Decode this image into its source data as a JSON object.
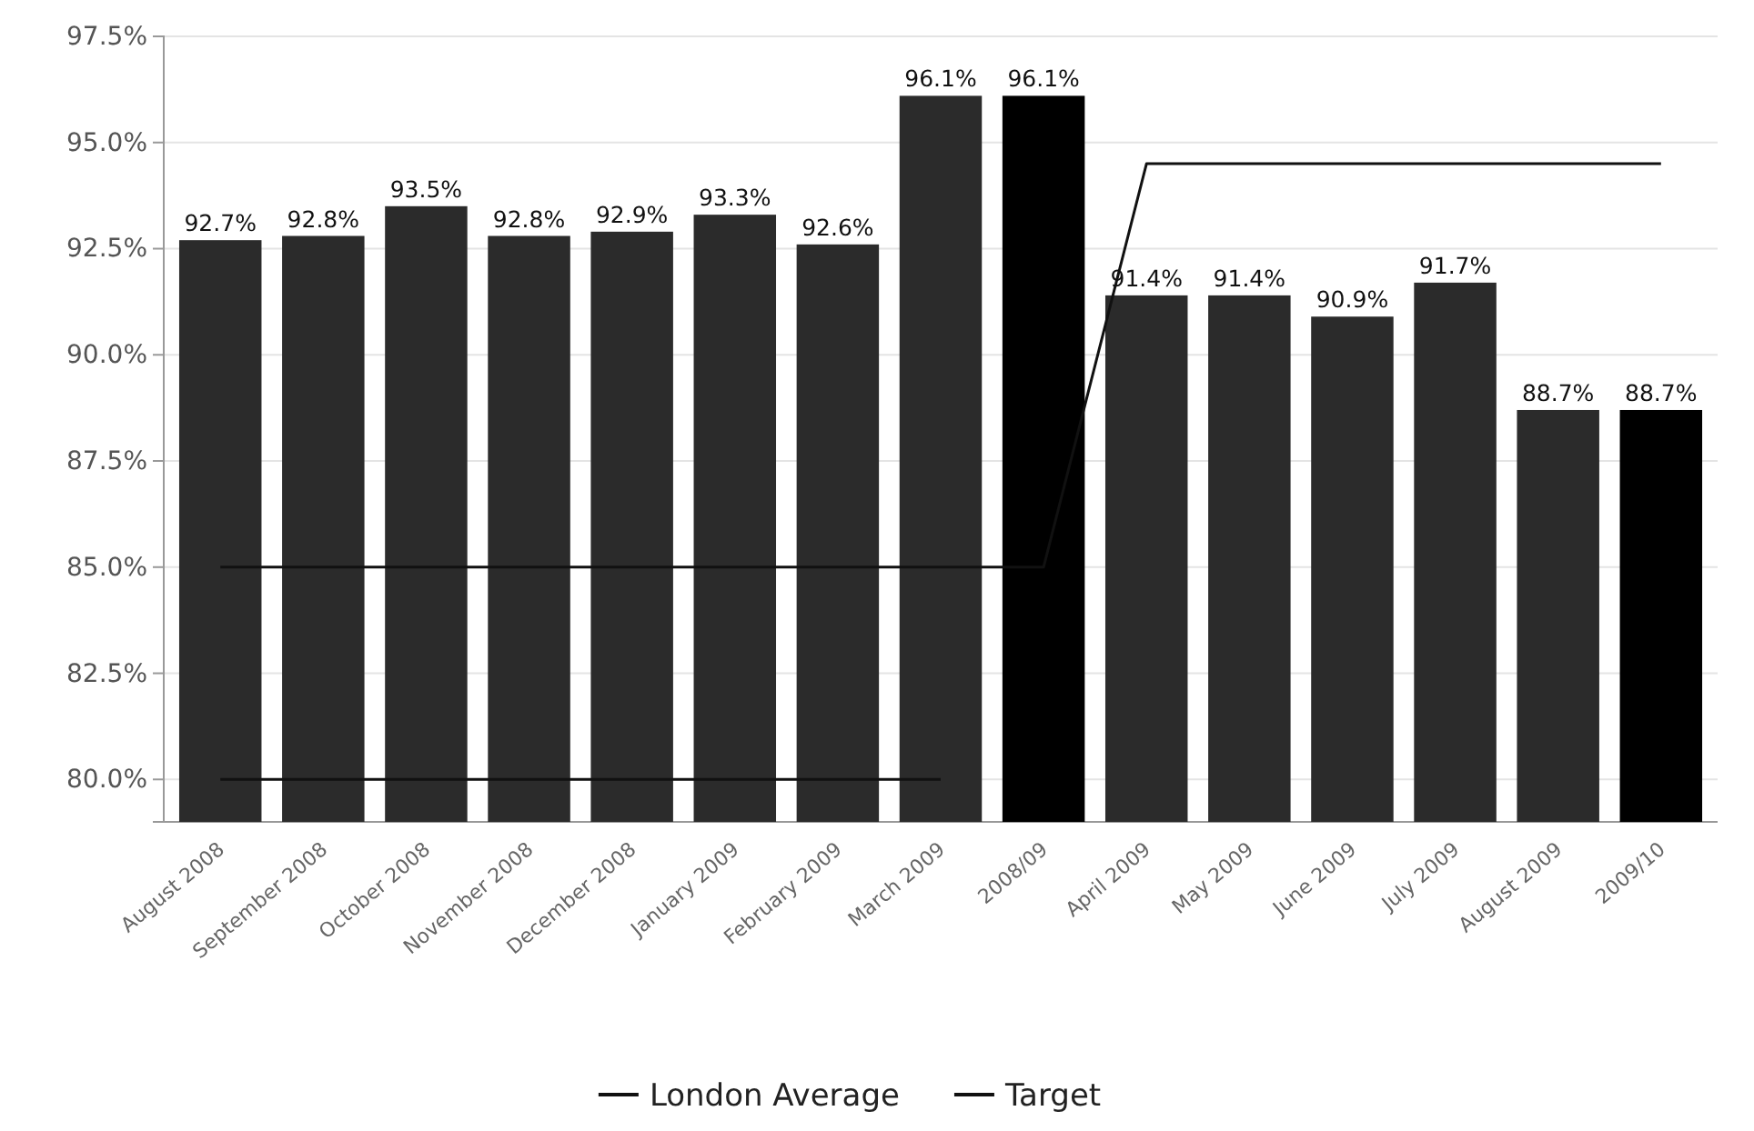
{
  "chart_data": {
    "type": "bar",
    "categories": [
      "August 2008",
      "September 2008",
      "October 2008",
      "November 2008",
      "December 2008",
      "January 2009",
      "February 2009",
      "March 2009",
      "2008/09",
      "April 2009",
      "May 2009",
      "June 2009",
      "July 2009",
      "August 2009",
      "2009/10"
    ],
    "series": [
      {
        "colors": [
          "#2b2b2b",
          "#2b2b2b",
          "#2b2b2b",
          "#2b2b2b",
          "#2b2b2b",
          "#2b2b2b",
          "#2b2b2b",
          "#2b2b2b",
          "#000000",
          "#2b2b2b",
          "#2b2b2b",
          "#2b2b2b",
          "#2b2b2b",
          "#2b2b2b",
          "#000000"
        ],
        "values": [
          92.7,
          92.8,
          93.5,
          92.8,
          92.9,
          93.3,
          92.6,
          96.1,
          96.1,
          91.4,
          91.4,
          90.9,
          91.7,
          88.7,
          88.7
        ],
        "value_labels": [
          "92.7%",
          "92.8%",
          "93.5%",
          "92.8%",
          "92.9%",
          "93.3%",
          "92.6%",
          "96.1%",
          "96.1%",
          "91.4%",
          "91.4%",
          "90.9%",
          "91.7%",
          "88.7%",
          "88.7%"
        ]
      },
      {
        "type": "line",
        "name": "London Average",
        "color": "#111111",
        "values": [
          80.0,
          80.0,
          80.0,
          80.0,
          80.0,
          80.0,
          80.0,
          80.0,
          null,
          null,
          null,
          null,
          null,
          null,
          null
        ]
      },
      {
        "type": "line",
        "name": "Target",
        "color": "#111111",
        "values": [
          85.0,
          85.0,
          85.0,
          85.0,
          85.0,
          85.0,
          85.0,
          85.0,
          85.0,
          94.5,
          94.5,
          94.5,
          94.5,
          94.5,
          94.5
        ]
      }
    ],
    "ylim": [
      79,
      97.5
    ],
    "yticks": [
      {
        "value": 80,
        "label": "80.0%"
      },
      {
        "value": 82.5,
        "label": "82.5%"
      },
      {
        "value": 85,
        "label": "85.0%"
      },
      {
        "value": 87.5,
        "label": "87.5%"
      },
      {
        "value": 90,
        "label": "90.0%"
      },
      {
        "value": 92.5,
        "label": "92.5%"
      },
      {
        "value": 95,
        "label": "95.0%"
      },
      {
        "value": 97.5,
        "label": "97.5%"
      }
    ],
    "grid": "y",
    "legend": "bottom",
    "marker": "none",
    "line_style": "solid"
  }
}
